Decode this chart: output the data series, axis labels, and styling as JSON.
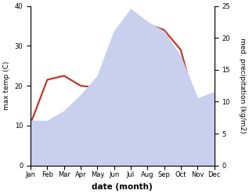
{
  "months": [
    "Jan",
    "Feb",
    "Mar",
    "Apr",
    "May",
    "Jun",
    "Jul",
    "Aug",
    "Sep",
    "Oct",
    "Nov",
    "Dec"
  ],
  "temp": [
    10.5,
    21.5,
    22.5,
    20.0,
    19.5,
    32.0,
    38.0,
    35.5,
    34.0,
    29.0,
    13.5,
    13.5
  ],
  "precip": [
    7.0,
    7.0,
    8.5,
    11.0,
    14.0,
    21.0,
    24.5,
    22.5,
    21.0,
    17.0,
    10.5,
    11.5
  ],
  "temp_color": "#c0392b",
  "precip_fill_color": "#c8d0ee",
  "ylabel_left": "max temp (C)",
  "ylabel_right": "med. precipitation (kg/m2)",
  "xlabel": "date (month)",
  "ylim_left": [
    0,
    40
  ],
  "ylim_right": [
    0,
    25
  ],
  "bg_color": "#ffffff",
  "line_width": 1.6,
  "tick_fontsize": 6.0,
  "label_fontsize": 6.5,
  "xlabel_fontsize": 7.5
}
